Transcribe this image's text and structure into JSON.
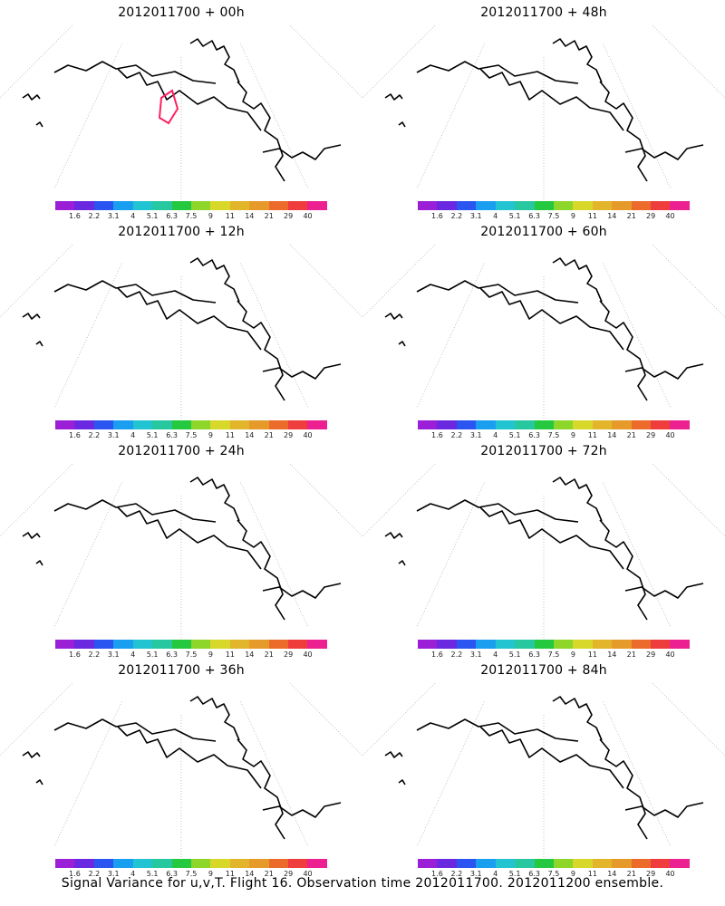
{
  "colorbar": {
    "colors": [
      "#9b1fd6",
      "#6a28e0",
      "#2b55f0",
      "#1a9ff0",
      "#22c4d2",
      "#27c8a0",
      "#25c940",
      "#8ed62a",
      "#d8d82a",
      "#e2b52a",
      "#e69a2a",
      "#ec6a2a",
      "#ef3c3c",
      "#ec2090"
    ],
    "labels": [
      "1.6",
      "2.2",
      "3.1",
      "4",
      "5.1",
      "6.3",
      "7.5",
      "9",
      "11",
      "14",
      "21",
      "29",
      "40"
    ]
  },
  "panels": [
    {
      "title": "2012011700 + 00h",
      "level": 0
    },
    {
      "title": "2012011700 + 48h",
      "level": 4
    },
    {
      "title": "2012011700 + 12h",
      "level": 1
    },
    {
      "title": "2012011700 + 60h",
      "level": 5
    },
    {
      "title": "2012011700 + 24h",
      "level": 2
    },
    {
      "title": "2012011700 + 72h",
      "level": 6
    },
    {
      "title": "2012011700 + 36h",
      "level": 3
    },
    {
      "title": "2012011700 + 84h",
      "level": 7
    }
  ],
  "caption": "Signal Variance for u,v,T. Flight 16. Observation time 2012011700. 2012011200 ensemble."
}
